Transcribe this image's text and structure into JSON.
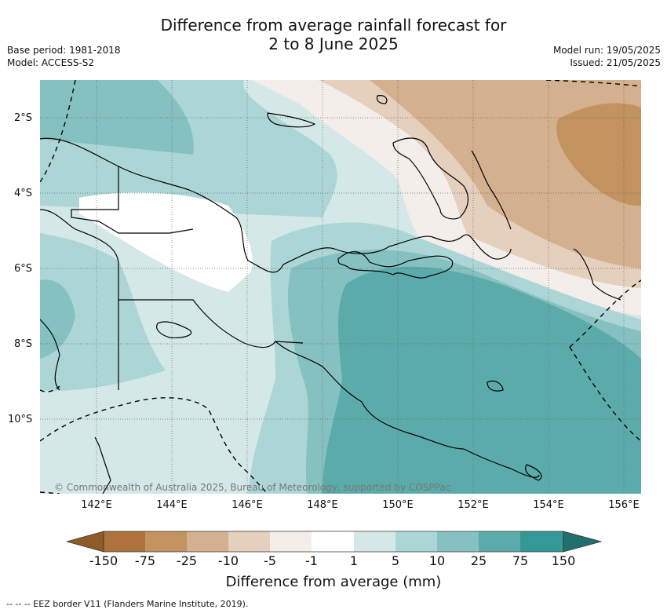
{
  "header": {
    "title_line1": "Difference from average rainfall forecast for",
    "title_line2": "2 to 8 June 2025",
    "base_period": "Base period: 1981-2018",
    "model": "Model: ACCESS-S2",
    "model_run": "Model run: 19/05/2025",
    "issued": "Issued: 21/05/2025"
  },
  "map": {
    "copyright": "© Commonwealth of Australia 2025, Bureau of Meteorology, supported by COSPPac",
    "lat_labels": [
      "2°S",
      "4°S",
      "6°S",
      "8°S",
      "10°S"
    ],
    "lon_labels": [
      "142°E",
      "144°E",
      "146°E",
      "148°E",
      "150°E",
      "152°E",
      "154°E",
      "156°E"
    ]
  },
  "colorbar": {
    "title": "Difference from average (mm)",
    "labels": [
      "-150",
      "-75",
      "-25",
      "-10",
      "-5",
      "-1",
      "1",
      "5",
      "10",
      "25",
      "75",
      "150"
    ],
    "colors": [
      "#8f5a27",
      "#ad733a",
      "#c2925f",
      "#d3b08e",
      "#e5cfbd",
      "#f3eeea",
      "#ffffff",
      "#d4e8e8",
      "#acd6d6",
      "#85c1c1",
      "#5cabab",
      "#349996",
      "#22706e"
    ]
  },
  "footer": {
    "legend_text": "--  --  -- EEZ border V11 (Flanders Marine Institute, 2019)."
  }
}
